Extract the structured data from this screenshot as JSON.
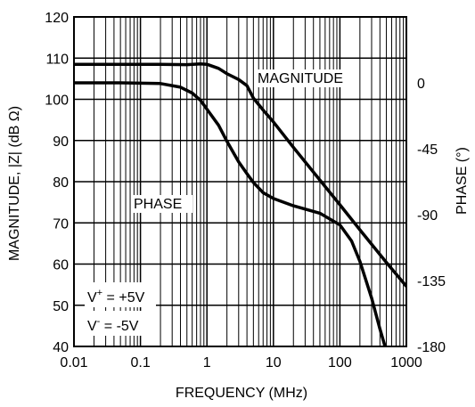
{
  "chart_data": {
    "type": "line",
    "xlabel": "FREQUENCY (MHz)",
    "ylabel": "MAGNITUDE, |Z| (dB Ω)",
    "y2label": "PHASE (°)",
    "xscale": "log",
    "xlim": [
      0.01,
      1000
    ],
    "ylim": [
      40,
      120
    ],
    "y2lim": [
      -180,
      45
    ],
    "grid": true,
    "x_ticks": [
      "0.01",
      "0.1",
      "1",
      "10",
      "100",
      "1000"
    ],
    "y_ticks": [
      "40",
      "50",
      "60",
      "70",
      "80",
      "90",
      "100",
      "110",
      "120"
    ],
    "y2_ticks": [
      "0",
      "-45",
      "-90",
      "-135",
      "-180"
    ],
    "annotations": [
      "MAGNITUDE",
      "PHASE"
    ],
    "conditions": {
      "vplus": {
        "prefix": "V",
        "sup": "+",
        "value": "= +5V"
      },
      "vminus": {
        "prefix": "V",
        "sup": "-",
        "value": "= -5V"
      }
    },
    "series": [
      {
        "name": "MAGNITUDE",
        "axis": "left",
        "x": [
          0.01,
          0.05,
          0.2,
          0.5,
          0.8,
          1,
          1.5,
          2,
          3,
          4,
          5,
          7,
          10,
          20,
          50,
          100,
          200,
          500,
          1000
        ],
        "y": [
          108.5,
          108.5,
          108.5,
          108.4,
          108.6,
          108.5,
          107.5,
          106.2,
          104.8,
          103.3,
          100.3,
          97.4,
          94.5,
          88.3,
          80.4,
          74.4,
          68.3,
          60.4,
          54.6
        ]
      },
      {
        "name": "PHASE",
        "axis": "right",
        "x": [
          0.01,
          0.05,
          0.2,
          0.4,
          0.6,
          0.8,
          1,
          1.5,
          2,
          3,
          4,
          5,
          7,
          10,
          20,
          50,
          100,
          150,
          200,
          300,
          400,
          500
        ],
        "y": [
          0,
          0,
          -0.5,
          -3,
          -7,
          -12,
          -18,
          -29,
          -40,
          -54,
          -62,
          -68,
          -75,
          -79,
          -84,
          -89,
          -97,
          -108,
          -122,
          -147,
          -168,
          -183
        ]
      }
    ]
  }
}
